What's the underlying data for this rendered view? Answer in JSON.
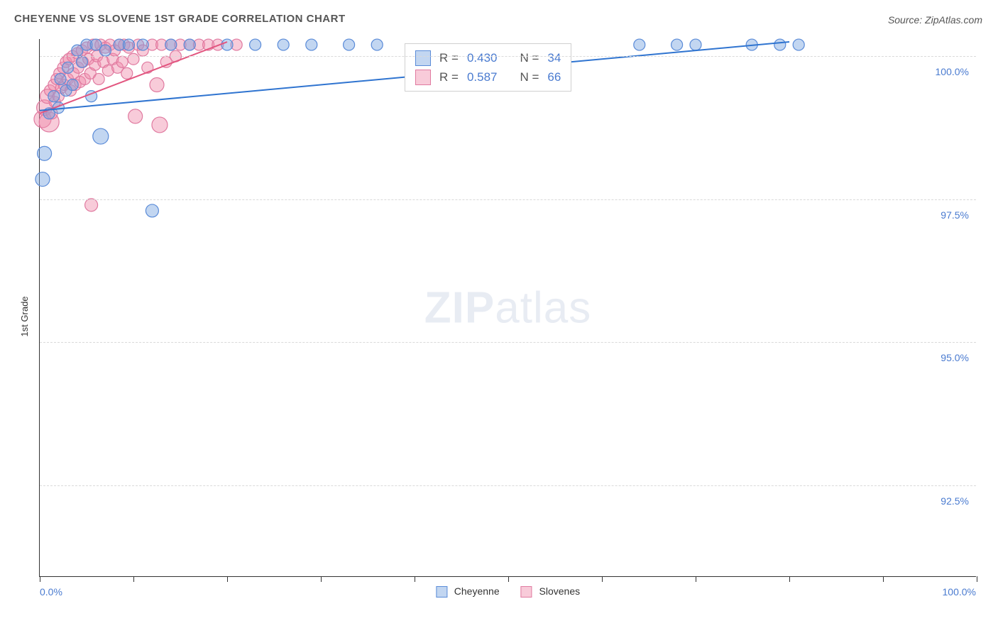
{
  "title": "CHEYENNE VS SLOVENE 1ST GRADE CORRELATION CHART",
  "source": "Source: ZipAtlas.com",
  "ylabel": "1st Grade",
  "watermark_bold": "ZIP",
  "watermark_light": "atlas",
  "axes": {
    "x_min": 0,
    "x_max": 100,
    "y_min": 90.9,
    "y_max": 100.3,
    "x_left_label": "0.0%",
    "x_right_label": "100.0%",
    "x_tick_positions": [
      0,
      10,
      20,
      30,
      40,
      50,
      60,
      70,
      80,
      90,
      100
    ],
    "y_grid": [
      {
        "value": 100.0,
        "label": "100.0%"
      },
      {
        "value": 97.5,
        "label": "97.5%"
      },
      {
        "value": 95.0,
        "label": "95.0%"
      },
      {
        "value": 92.5,
        "label": "92.5%"
      }
    ]
  },
  "colors": {
    "cheyenne_fill": "rgba(120,165,225,0.45)",
    "cheyenne_stroke": "#5a8bd8",
    "slovene_fill": "rgba(240,140,170,0.45)",
    "slovene_stroke": "#e07aa0",
    "cheyenne_line": "#2f74d0",
    "slovene_line": "#e2557f",
    "tick_text": "#4a7bd0",
    "grid": "#d9d9d9"
  },
  "stats": {
    "row1": {
      "swatch_fill": "rgba(120,165,225,0.45)",
      "swatch_stroke": "#5a8bd8",
      "r_label": "R =",
      "r_value": "0.430",
      "n_label": "N =",
      "n_value": "34"
    },
    "row2": {
      "swatch_fill": "rgba(240,140,170,0.45)",
      "swatch_stroke": "#e07aa0",
      "r_label": "R =",
      "r_value": "0.587",
      "n_label": "N =",
      "n_value": "66"
    }
  },
  "legend": {
    "a": {
      "label": "Cheyenne",
      "fill": "rgba(120,165,225,0.45)",
      "stroke": "#5a8bd8"
    },
    "b": {
      "label": "Slovenes",
      "fill": "rgba(240,140,170,0.45)",
      "stroke": "#e07aa0"
    }
  },
  "trend_lines": {
    "cheyenne": {
      "x1": 0,
      "y1": 99.05,
      "x2": 80,
      "y2": 100.25
    },
    "slovene": {
      "x1": 0,
      "y1": 99.0,
      "x2": 20,
      "y2": 100.25
    }
  },
  "marker_default_r": 8,
  "series": {
    "cheyenne": [
      {
        "x": 0.3,
        "y": 97.85,
        "r": 10
      },
      {
        "x": 0.5,
        "y": 98.3,
        "r": 10
      },
      {
        "x": 1.0,
        "y": 99.0
      },
      {
        "x": 1.5,
        "y": 99.3
      },
      {
        "x": 2.0,
        "y": 99.1
      },
      {
        "x": 2.2,
        "y": 99.6
      },
      {
        "x": 2.8,
        "y": 99.4
      },
      {
        "x": 3.0,
        "y": 99.8
      },
      {
        "x": 3.5,
        "y": 99.5
      },
      {
        "x": 4.0,
        "y": 100.1
      },
      {
        "x": 4.5,
        "y": 99.9
      },
      {
        "x": 5.0,
        "y": 100.2
      },
      {
        "x": 5.5,
        "y": 99.3
      },
      {
        "x": 6.0,
        "y": 100.2
      },
      {
        "x": 6.5,
        "y": 98.6,
        "r": 11
      },
      {
        "x": 7.0,
        "y": 100.1
      },
      {
        "x": 8.5,
        "y": 100.2
      },
      {
        "x": 9.5,
        "y": 100.2
      },
      {
        "x": 11.0,
        "y": 100.2
      },
      {
        "x": 12.0,
        "y": 97.3,
        "r": 9
      },
      {
        "x": 14.0,
        "y": 100.2
      },
      {
        "x": 16.0,
        "y": 100.2
      },
      {
        "x": 20.0,
        "y": 100.2
      },
      {
        "x": 23.0,
        "y": 100.2
      },
      {
        "x": 26.0,
        "y": 100.2
      },
      {
        "x": 29.0,
        "y": 100.2
      },
      {
        "x": 33.0,
        "y": 100.2
      },
      {
        "x": 36.0,
        "y": 100.2
      },
      {
        "x": 64.0,
        "y": 100.2
      },
      {
        "x": 68.0,
        "y": 100.2
      },
      {
        "x": 70.0,
        "y": 100.2
      },
      {
        "x": 76.0,
        "y": 100.2
      },
      {
        "x": 79.0,
        "y": 100.2
      },
      {
        "x": 81.0,
        "y": 100.2
      }
    ],
    "slovene": [
      {
        "x": 0.3,
        "y": 98.9,
        "r": 12
      },
      {
        "x": 0.5,
        "y": 99.1,
        "r": 11
      },
      {
        "x": 0.8,
        "y": 99.3,
        "r": 10
      },
      {
        "x": 1.0,
        "y": 98.85,
        "r": 14
      },
      {
        "x": 1.1,
        "y": 99.4
      },
      {
        "x": 1.3,
        "y": 99.0
      },
      {
        "x": 1.5,
        "y": 99.5
      },
      {
        "x": 1.6,
        "y": 99.2
      },
      {
        "x": 1.8,
        "y": 99.6
      },
      {
        "x": 2.0,
        "y": 99.3
      },
      {
        "x": 2.1,
        "y": 99.7
      },
      {
        "x": 2.3,
        "y": 99.45
      },
      {
        "x": 2.5,
        "y": 99.8
      },
      {
        "x": 2.6,
        "y": 99.5
      },
      {
        "x": 2.8,
        "y": 99.9
      },
      {
        "x": 3.0,
        "y": 99.6
      },
      {
        "x": 3.1,
        "y": 99.95
      },
      {
        "x": 3.3,
        "y": 99.4
      },
      {
        "x": 3.5,
        "y": 100.0
      },
      {
        "x": 3.6,
        "y": 99.7
      },
      {
        "x": 3.8,
        "y": 99.5
      },
      {
        "x": 4.0,
        "y": 100.05
      },
      {
        "x": 4.1,
        "y": 99.8
      },
      {
        "x": 4.3,
        "y": 99.55
      },
      {
        "x": 4.5,
        "y": 100.1
      },
      {
        "x": 4.6,
        "y": 99.9
      },
      {
        "x": 4.8,
        "y": 99.6
      },
      {
        "x": 5.0,
        "y": 100.15
      },
      {
        "x": 5.2,
        "y": 99.95
      },
      {
        "x": 5.4,
        "y": 99.7
      },
      {
        "x": 5.5,
        "y": 97.4,
        "r": 9
      },
      {
        "x": 5.7,
        "y": 100.2
      },
      {
        "x": 5.9,
        "y": 99.85
      },
      {
        "x": 6.1,
        "y": 100.0
      },
      {
        "x": 6.3,
        "y": 99.6
      },
      {
        "x": 6.5,
        "y": 100.2
      },
      {
        "x": 6.8,
        "y": 99.9
      },
      {
        "x": 7.0,
        "y": 100.15
      },
      {
        "x": 7.3,
        "y": 99.75
      },
      {
        "x": 7.5,
        "y": 100.2
      },
      {
        "x": 7.8,
        "y": 99.95
      },
      {
        "x": 8.0,
        "y": 100.1
      },
      {
        "x": 8.3,
        "y": 99.8
      },
      {
        "x": 8.5,
        "y": 100.2
      },
      {
        "x": 8.8,
        "y": 99.9
      },
      {
        "x": 9.0,
        "y": 100.2
      },
      {
        "x": 9.3,
        "y": 99.7
      },
      {
        "x": 9.5,
        "y": 100.15
      },
      {
        "x": 10.0,
        "y": 99.95
      },
      {
        "x": 10.2,
        "y": 98.95,
        "r": 10
      },
      {
        "x": 10.5,
        "y": 100.2
      },
      {
        "x": 11.0,
        "y": 100.1
      },
      {
        "x": 11.5,
        "y": 99.8
      },
      {
        "x": 12.0,
        "y": 100.2
      },
      {
        "x": 12.5,
        "y": 99.5,
        "r": 10
      },
      {
        "x": 12.8,
        "y": 98.8,
        "r": 11
      },
      {
        "x": 13.0,
        "y": 100.2
      },
      {
        "x": 13.5,
        "y": 99.9
      },
      {
        "x": 14.0,
        "y": 100.2
      },
      {
        "x": 14.5,
        "y": 100.0
      },
      {
        "x": 15.0,
        "y": 100.2
      },
      {
        "x": 16.0,
        "y": 100.2
      },
      {
        "x": 17.0,
        "y": 100.2
      },
      {
        "x": 18.0,
        "y": 100.2
      },
      {
        "x": 19.0,
        "y": 100.2
      },
      {
        "x": 21.0,
        "y": 100.2
      }
    ]
  }
}
